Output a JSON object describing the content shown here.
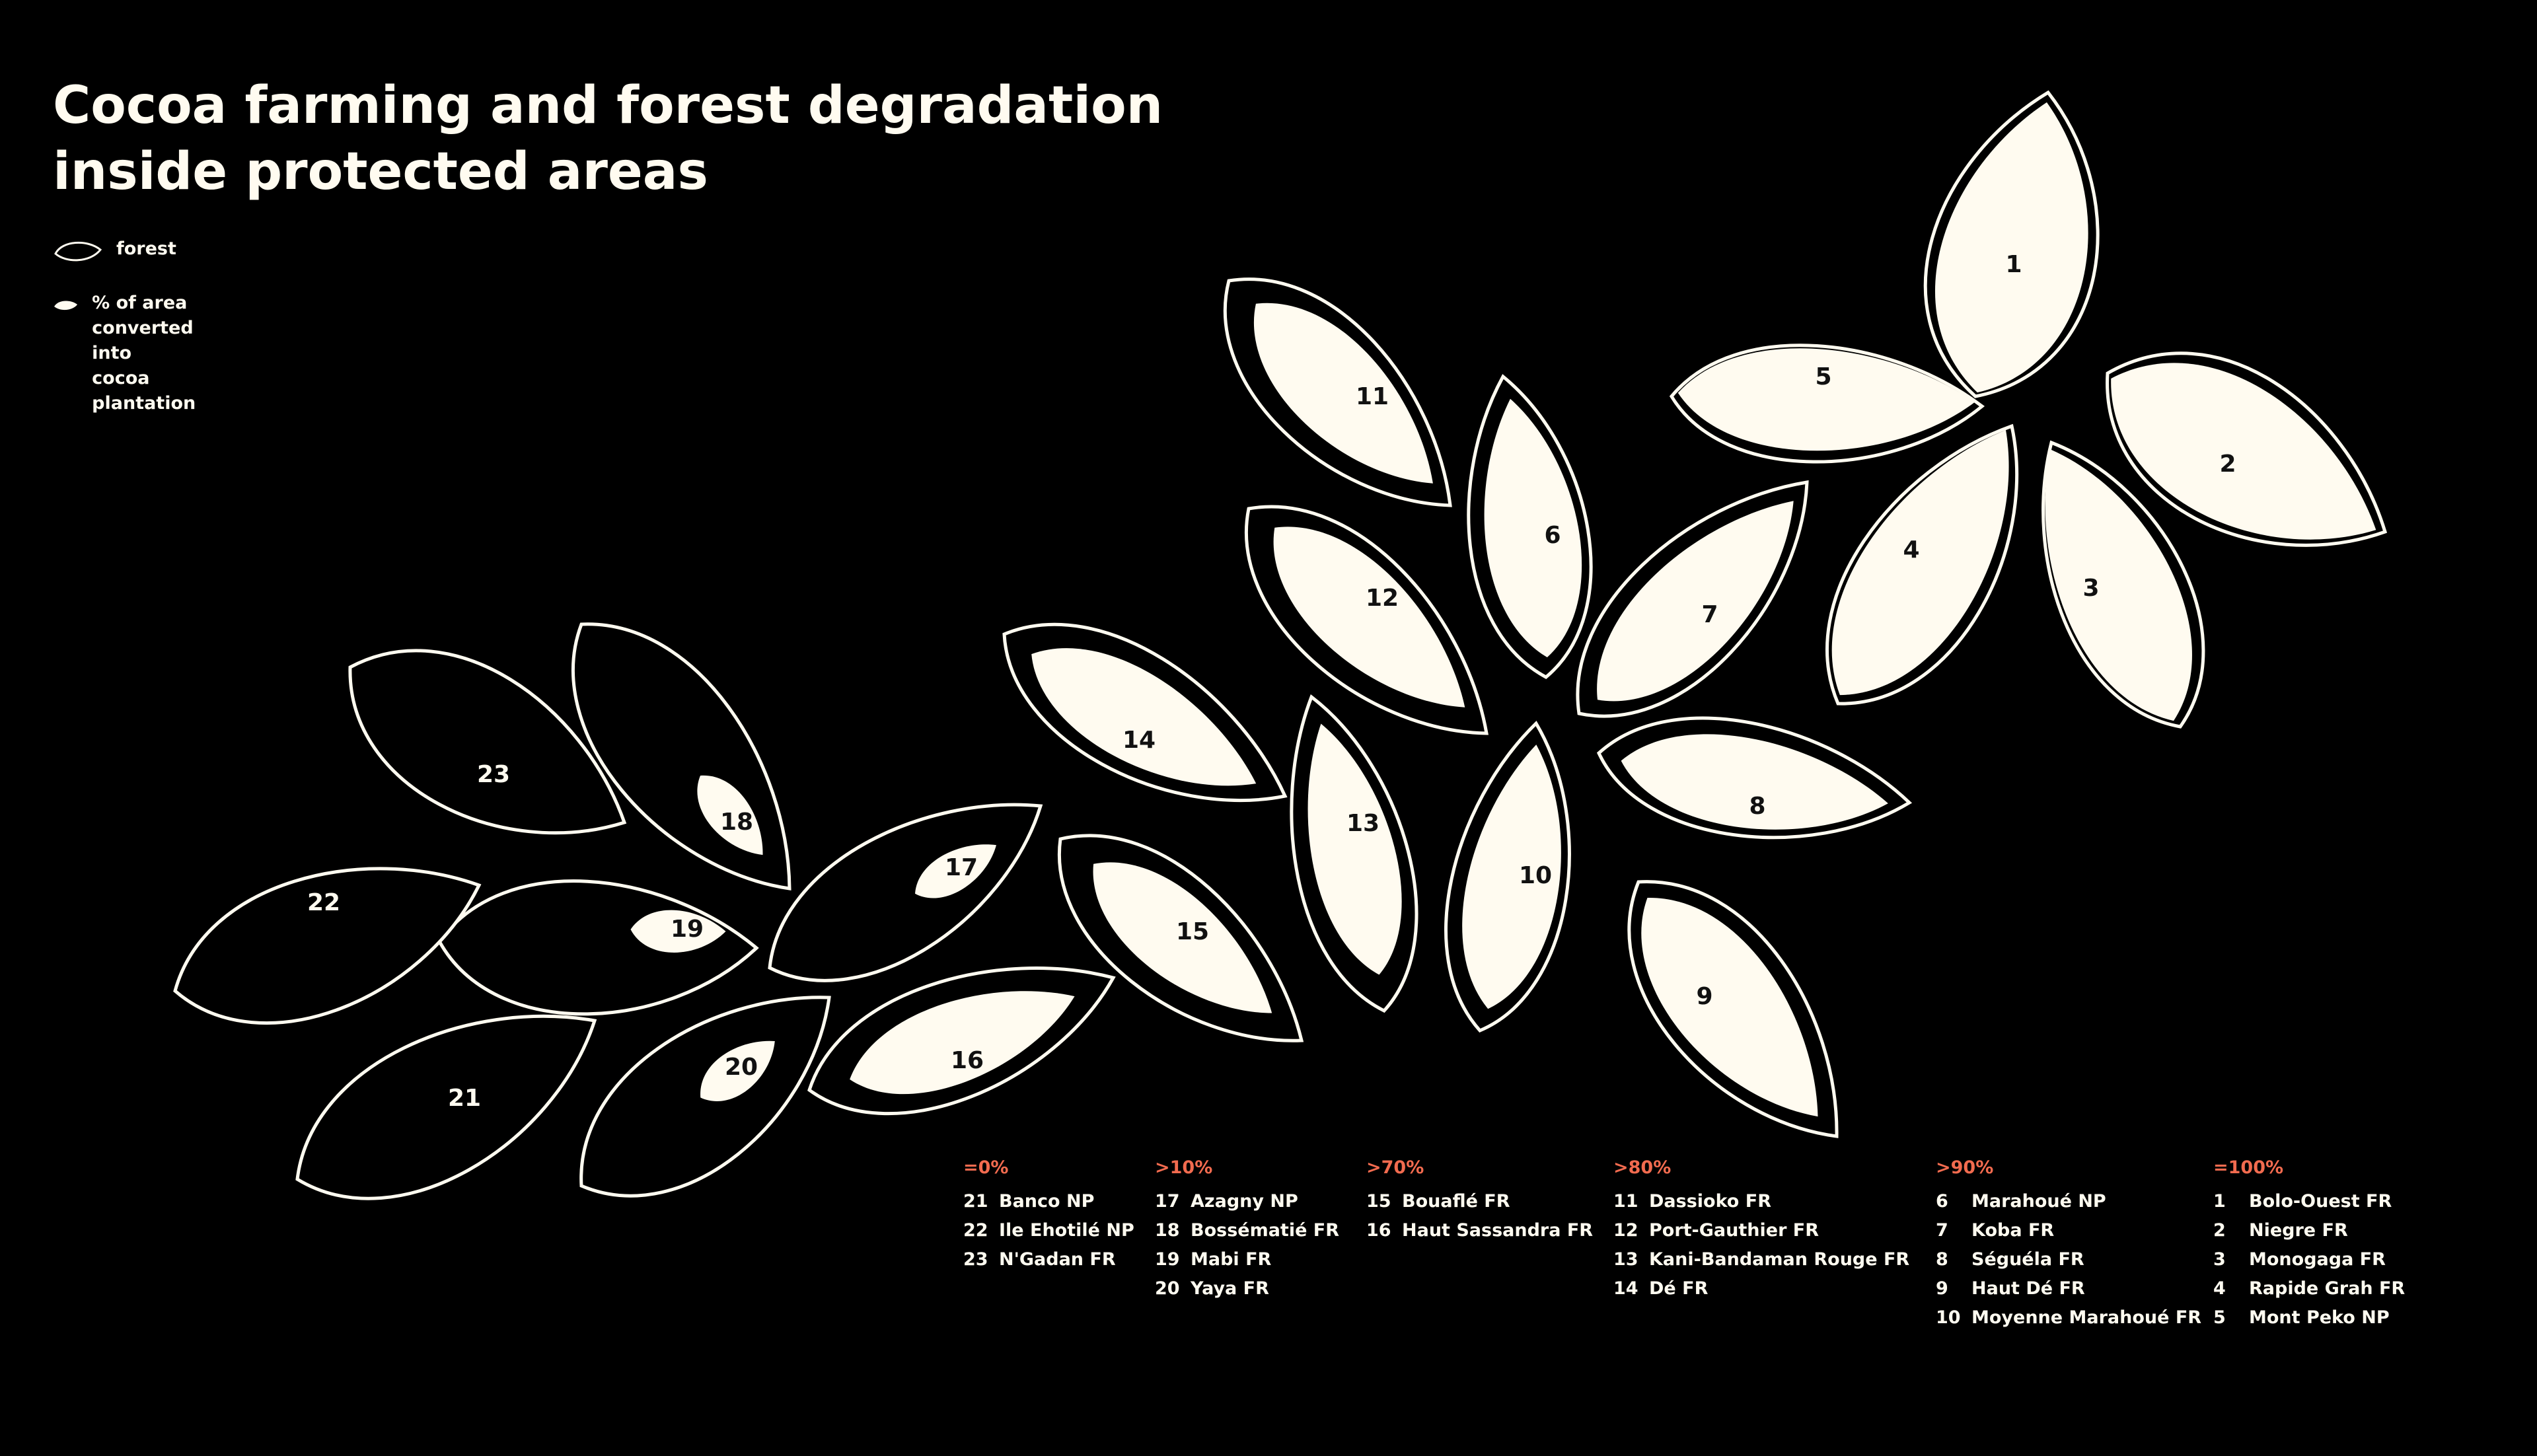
{
  "title": {
    "line1": "Cocoa farming and forest degradation",
    "line2": "inside protected areas"
  },
  "legend": {
    "forest_label": "forest",
    "converted_line1": "% of area converted into",
    "converted_line2": "cocoa plantation"
  },
  "colors": {
    "background": "#000000",
    "leaf": "#fffbf0",
    "accent": "#f26b4f"
  },
  "leaves": [
    {
      "id": "1",
      "label": "1",
      "category": "=100%",
      "percent_converted": 100
    },
    {
      "id": "2",
      "label": "2",
      "category": "=100%",
      "percent_converted": 100
    },
    {
      "id": "3",
      "label": "3",
      "category": "=100%",
      "percent_converted": 100
    },
    {
      "id": "4",
      "label": "4",
      "category": "=100%",
      "percent_converted": 100
    },
    {
      "id": "5",
      "label": "5",
      "category": "=100%",
      "percent_converted": 100
    },
    {
      "id": "6",
      "label": "6",
      "category": ">90%",
      "percent_converted": 90
    },
    {
      "id": "7",
      "label": "7",
      "category": ">90%",
      "percent_converted": 90
    },
    {
      "id": "8",
      "label": "8",
      "category": ">90%",
      "percent_converted": 90
    },
    {
      "id": "9",
      "label": "9",
      "category": ">90%",
      "percent_converted": 90
    },
    {
      "id": "10",
      "label": "10",
      "category": ">90%",
      "percent_converted": 90
    },
    {
      "id": "11",
      "label": "11",
      "category": ">80%",
      "percent_converted": 80
    },
    {
      "id": "12",
      "label": "12",
      "category": ">80%",
      "percent_converted": 80
    },
    {
      "id": "13",
      "label": "13",
      "category": ">80%",
      "percent_converted": 80
    },
    {
      "id": "14",
      "label": "14",
      "category": ">80%",
      "percent_converted": 80
    },
    {
      "id": "15",
      "label": "15",
      "category": ">70%",
      "percent_converted": 70
    },
    {
      "id": "16",
      "label": "16",
      "category": ">70%",
      "percent_converted": 70
    },
    {
      "id": "17",
      "label": "17",
      "category": ">10%",
      "percent_converted": 10
    },
    {
      "id": "18",
      "label": "18",
      "category": ">10%",
      "percent_converted": 10
    },
    {
      "id": "19",
      "label": "19",
      "category": ">10%",
      "percent_converted": 10
    },
    {
      "id": "20",
      "label": "20",
      "category": ">10%",
      "percent_converted": 10
    },
    {
      "id": "21",
      "label": "21",
      "category": "=0%",
      "percent_converted": 0
    },
    {
      "id": "22",
      "label": "22",
      "category": "=0%",
      "percent_converted": 0
    },
    {
      "id": "23",
      "label": "23",
      "category": "=0%",
      "percent_converted": 0
    }
  ],
  "categories": [
    {
      "label": "=0%",
      "items": [
        {
          "num": "21",
          "name": "Banco NP"
        },
        {
          "num": "22",
          "name": "Ile Ehotilé NP"
        },
        {
          "num": "23",
          "name": "N'Gadan FR"
        }
      ]
    },
    {
      "label": ">10%",
      "items": [
        {
          "num": "17",
          "name": "Azagny NP"
        },
        {
          "num": "18",
          "name": "Bossématié FR"
        },
        {
          "num": "19",
          "name": "Mabi FR"
        },
        {
          "num": "20",
          "name": "Yaya FR"
        }
      ]
    },
    {
      "label": ">70%",
      "items": [
        {
          "num": "15",
          "name": "Bouaflé FR"
        },
        {
          "num": "16",
          "name": "Haut Sassandra FR"
        }
      ]
    },
    {
      "label": ">80%",
      "items": [
        {
          "num": "11",
          "name": "Dassioko FR"
        },
        {
          "num": "12",
          "name": "Port-Gauthier FR"
        },
        {
          "num": "13",
          "name": "Kani-Bandaman Rouge FR"
        },
        {
          "num": "14",
          "name": "Dé FR"
        }
      ]
    },
    {
      "label": ">90%",
      "items": [
        {
          "num": "6",
          "name": "Marahoué NP"
        },
        {
          "num": "7",
          "name": "Koba FR"
        },
        {
          "num": "8",
          "name": "Séguéla FR"
        },
        {
          "num": "9",
          "name": "Haut Dé FR"
        },
        {
          "num": "10",
          "name": "Moyenne Marahoué FR"
        }
      ]
    },
    {
      "label": "=100%",
      "items": [
        {
          "num": "1",
          "name": "Bolo-Ouest FR"
        },
        {
          "num": "2",
          "name": "Niegre FR"
        },
        {
          "num": "3",
          "name": "Monogaga FR"
        },
        {
          "num": "4",
          "name": "Rapide Grah FR"
        },
        {
          "num": "5",
          "name": "Mont Peko NP"
        }
      ]
    }
  ]
}
